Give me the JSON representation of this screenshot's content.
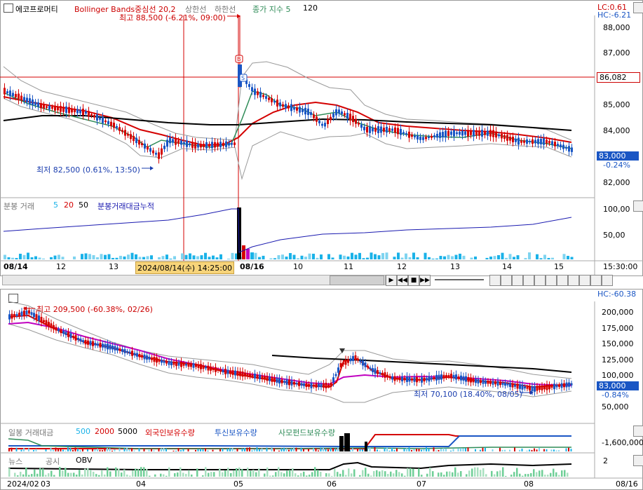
{
  "top": {
    "symbol": "에코프로머티",
    "indicator_bb": "Bollinger Bands중심선 20,2",
    "upper": "상한선",
    "lower": "하한선",
    "close_index": "종가 지수 5",
    "close_index_val": "120",
    "lc": "LC:0.61",
    "hc": "HC:-6.21",
    "max_label": "최고 88,500 (-6.21%, 09:00)",
    "min_label": "최저 82,500 (0.61%, 13:50)",
    "price_line": "86,082",
    "cur_price": "83,000",
    "cur_pct": "-0.24%",
    "y_ticks": [
      "88,000",
      "87,000",
      "85,000",
      "84,000",
      "82,000"
    ],
    "vol_title": "분봉 거래",
    "vol_5": "5",
    "vol_20": "20",
    "vol_50": "50",
    "vol_cum": "분봉거래대금누적",
    "vol_ticks": [
      "100,00",
      "50,00"
    ],
    "dates": [
      "08/14",
      "12",
      "13",
      "08/16",
      "10",
      "11",
      "12",
      "13",
      "14",
      "15"
    ],
    "crosshair_date": "2024/08/14(수) 14:25:00",
    "time": "15:30:00"
  },
  "bottom": {
    "hc": "HC:-60.38",
    "max_label": "최고 209,500 (-60.38%, 02/26)",
    "min_label": "최저 70,100 (18.40%, 08/05)",
    "y_ticks": [
      "200,000",
      "175,000",
      "150,000",
      "125,000",
      "100,000",
      "50,000"
    ],
    "cur_price": "83,000",
    "cur_pct": "-0.84%",
    "sub_title": "일봉 거래대금",
    "sub_500": "500",
    "sub_2000": "2000",
    "sub_5000": "5000",
    "foreign": "외국인보유수량",
    "trust": "투신보유수량",
    "private": "사모펀드보유수량",
    "sub_tick": "-1,600,000",
    "news": "뉴스",
    "notice": "공시",
    "obv": "OBV",
    "obv_tick": "2",
    "dates": [
      "2024/02",
      "03",
      "04",
      "05",
      "06",
      "07",
      "08",
      "08/16"
    ]
  },
  "colors": {
    "red": "#d40000",
    "blue": "#1a56c4",
    "black": "#000000",
    "magenta": "#c000c0",
    "green": "#2e8b57",
    "gray": "#888888",
    "vol": "#1ab2e8"
  }
}
